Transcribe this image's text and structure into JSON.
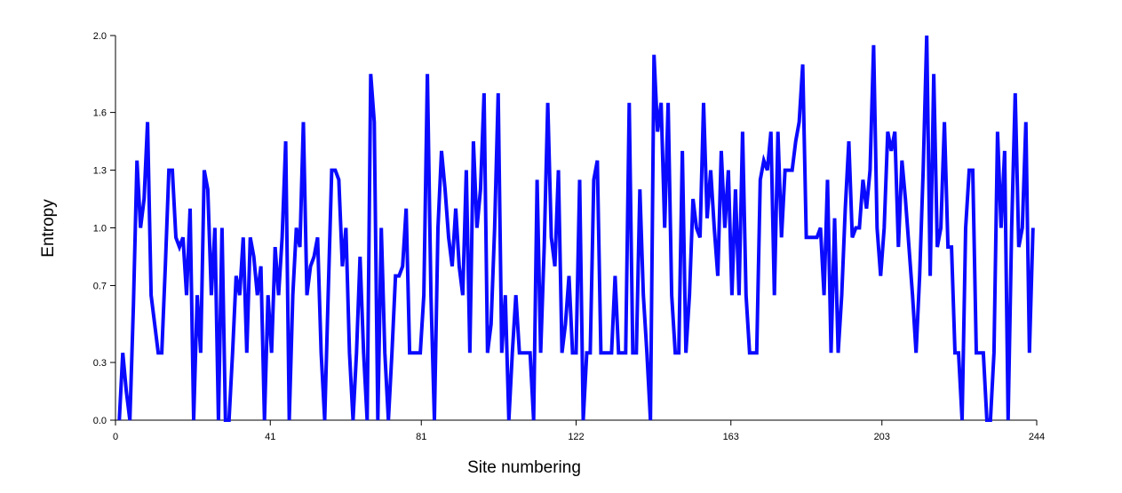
{
  "chart_data": {
    "type": "line",
    "title": "",
    "xlabel": "Site numbering",
    "ylabel": "Entropy",
    "xlim": [
      0,
      244
    ],
    "ylim": [
      0,
      2.0
    ],
    "x_ticks": [
      0,
      41,
      81,
      122,
      163,
      203,
      244
    ],
    "y_ticks": [
      0.0,
      0.3,
      0.7,
      1.0,
      1.3,
      1.6,
      2.0
    ],
    "y_tick_labels": [
      "0.0",
      "0.3",
      "0.7",
      "1.0",
      "1.3",
      "1.6",
      "2.0"
    ],
    "grid": false,
    "legend": "none",
    "line_color": "#0a0aff",
    "series": [
      {
        "values": [
          0,
          0.35,
          0.15,
          0,
          0.6,
          1.35,
          1.0,
          1.15,
          1.55,
          0.65,
          0.5,
          0.35,
          0.35,
          0.8,
          1.3,
          1.3,
          0.95,
          0.9,
          0.95,
          0.65,
          1.1,
          0,
          0.65,
          0.35,
          1.3,
          1.2,
          0.65,
          1.0,
          0,
          1.0,
          0,
          0,
          0.35,
          0.75,
          0.65,
          0.95,
          0.35,
          0.95,
          0.85,
          0.65,
          0.8,
          0,
          0.65,
          0.35,
          0.9,
          0.65,
          0.95,
          1.45,
          0,
          0.65,
          1.0,
          0.9,
          1.55,
          0.65,
          0.8,
          0.85,
          0.95,
          0.35,
          0,
          0.65,
          1.3,
          1.3,
          1.25,
          0.8,
          1.0,
          0.35,
          0,
          0.35,
          0.85,
          0.35,
          0,
          1.8,
          1.55,
          0,
          1.0,
          0.35,
          0,
          0.35,
          0.75,
          0.75,
          0.8,
          1.1,
          0.35,
          0.35,
          0.35,
          0.35,
          0.65,
          1.8,
          0.65,
          0,
          1.0,
          1.4,
          1.2,
          0.95,
          0.8,
          1.1,
          0.8,
          0.65,
          1.3,
          0.35,
          1.45,
          1.0,
          1.2,
          1.7,
          0.35,
          0.5,
          1.0,
          1.7,
          0.35,
          0.65,
          0,
          0.35,
          0.65,
          0.35,
          0.35,
          0.35,
          0.35,
          0,
          1.25,
          0.35,
          0.9,
          1.65,
          0.95,
          0.8,
          1.3,
          0.35,
          0.5,
          0.75,
          0.35,
          0.35,
          1.25,
          0,
          0.35,
          0.35,
          1.25,
          1.35,
          0.35,
          0.35,
          0.35,
          0.35,
          0.75,
          0.35,
          0.35,
          0.35,
          1.65,
          0.35,
          0.35,
          1.2,
          0.65,
          0.35,
          0,
          1.9,
          1.5,
          1.65,
          1.0,
          1.65,
          0.65,
          0.35,
          0.35,
          1.4,
          0.35,
          0.65,
          1.15,
          1.0,
          0.95,
          1.65,
          1.05,
          1.3,
          1.0,
          0.75,
          1.4,
          1.0,
          1.3,
          0.65,
          1.2,
          0.65,
          1.5,
          0.65,
          0.35,
          0.35,
          0.35,
          1.25,
          1.35,
          1.3,
          1.5,
          0.65,
          1.5,
          0.95,
          1.3,
          1.3,
          1.3,
          1.45,
          1.55,
          1.85,
          0.95,
          0.95,
          0.95,
          0.95,
          1.0,
          0.65,
          1.25,
          0.35,
          1.05,
          0.35,
          0.65,
          1.1,
          1.45,
          0.95,
          1.0,
          1.0,
          1.25,
          1.1,
          1.3,
          1.95,
          1.0,
          0.75,
          1.0,
          1.5,
          1.4,
          1.5,
          0.9,
          1.35,
          1.15,
          0.9,
          0.65,
          0.35,
          0.75,
          1.3,
          2.0,
          0.75,
          1.8,
          0.9,
          1.0,
          1.55,
          0.9,
          0.9,
          0.35,
          0.35,
          0,
          1.0,
          1.3,
          1.3,
          0.35,
          0.35,
          0.35,
          0,
          0,
          0.35,
          1.5,
          1.0,
          1.4,
          0,
          1.0,
          1.7,
          0.9,
          1.0,
          1.55,
          0.35,
          1.0
        ]
      }
    ]
  }
}
